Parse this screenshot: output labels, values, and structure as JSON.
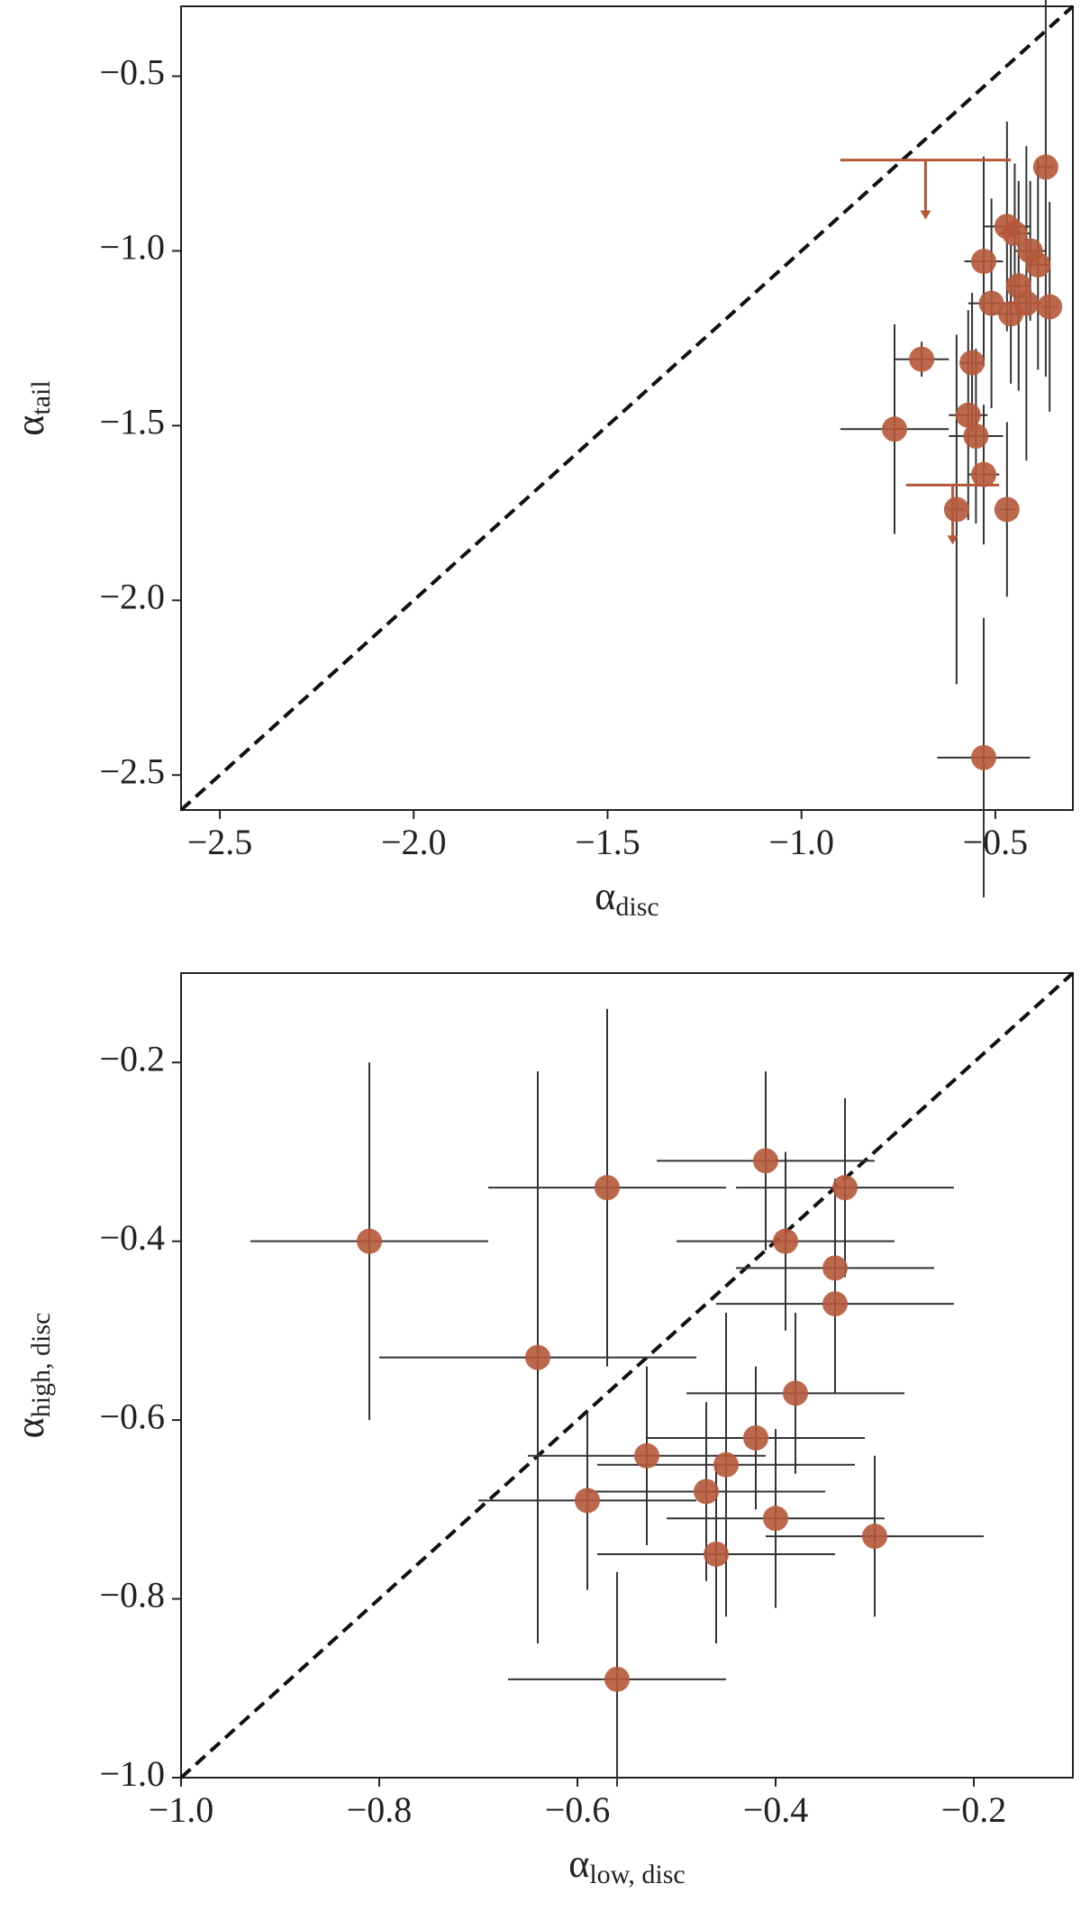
{
  "chart_data": [
    {
      "type": "scatter",
      "xlabel": "α",
      "xlabel_sub": "disc",
      "ylabel": "α",
      "ylabel_sub": "tail",
      "xlim": [
        -2.6,
        -0.3
      ],
      "ylim": [
        -2.6,
        -0.3
      ],
      "xticks": [
        {
          "value": -2.5,
          "label": "−2.5"
        },
        {
          "value": -2.0,
          "label": "−2.0"
        },
        {
          "value": -1.5,
          "label": "−1.5"
        },
        {
          "value": -1.0,
          "label": "−1.0"
        },
        {
          "value": -0.5,
          "label": "−0.5"
        }
      ],
      "yticks": [
        {
          "value": -2.5,
          "label": "−2.5"
        },
        {
          "value": -2.0,
          "label": "−2.0"
        },
        {
          "value": -1.5,
          "label": "−1.5"
        },
        {
          "value": -1.0,
          "label": "−1.0"
        },
        {
          "value": -0.5,
          "label": "−0.5"
        }
      ],
      "diagonal": true,
      "color": "#b5583a",
      "x": [
        -0.37,
        -0.47,
        -0.45,
        -0.53,
        -0.41,
        -0.39,
        -0.44,
        -0.51,
        -0.42,
        -0.36,
        -0.46,
        -0.69,
        -0.56,
        -0.57,
        -0.55,
        -0.76,
        -0.53,
        -0.47,
        -0.6,
        -0.53
      ],
      "y": [
        -0.76,
        -0.93,
        -0.95,
        -1.03,
        -1.0,
        -1.04,
        -1.1,
        -1.15,
        -1.15,
        -1.16,
        -1.18,
        -1.31,
        -1.32,
        -1.47,
        -1.53,
        -1.51,
        -1.64,
        -1.74,
        -1.74,
        -2.45
      ],
      "xerr": [
        0.02,
        0.06,
        0.04,
        0.05,
        0.04,
        0.03,
        0.03,
        0.06,
        0.04,
        0.02,
        0.05,
        0.07,
        0.03,
        0.05,
        0.07,
        0.14,
        0.04,
        0.02,
        0.02,
        0.12
      ],
      "yerr": [
        0.6,
        0.3,
        0.2,
        0.3,
        0.2,
        0.3,
        0.3,
        0.3,
        0.45,
        0.3,
        0.2,
        0.05,
        0.2,
        0.3,
        0.25,
        0.3,
        0.2,
        0.25,
        0.5,
        0.4
      ],
      "limits": {
        "color": "#b5583a",
        "x": [
          -0.68,
          -0.61
        ],
        "y": [
          -0.74,
          -1.67
        ],
        "xerr": [
          0.22,
          0.12
        ]
      }
    },
    {
      "type": "scatter",
      "xlabel": "α",
      "xlabel_sub": "low, disc",
      "ylabel": "α",
      "ylabel_sub": "high, disc",
      "xlim": [
        -1.0,
        -0.1
      ],
      "ylim": [
        -1.0,
        -0.1
      ],
      "xticks": [
        {
          "value": -1.0,
          "label": "−1.0"
        },
        {
          "value": -0.8,
          "label": "−0.8"
        },
        {
          "value": -0.6,
          "label": "−0.6"
        },
        {
          "value": -0.4,
          "label": "−0.4"
        },
        {
          "value": -0.2,
          "label": "−0.2"
        }
      ],
      "yticks": [
        {
          "value": -1.0,
          "label": "−1.0"
        },
        {
          "value": -0.8,
          "label": "−0.8"
        },
        {
          "value": -0.6,
          "label": "−0.6"
        },
        {
          "value": -0.4,
          "label": "−0.4"
        },
        {
          "value": -0.2,
          "label": "−0.2"
        }
      ],
      "diagonal": true,
      "color": "#b5583a",
      "x": [
        -0.81,
        -0.57,
        -0.41,
        -0.33,
        -0.39,
        -0.34,
        -0.34,
        -0.64,
        -0.38,
        -0.42,
        -0.53,
        -0.45,
        -0.47,
        -0.59,
        -0.4,
        -0.3,
        -0.46,
        -0.56
      ],
      "y": [
        -0.4,
        -0.34,
        -0.31,
        -0.34,
        -0.4,
        -0.43,
        -0.47,
        -0.53,
        -0.57,
        -0.62,
        -0.64,
        -0.65,
        -0.68,
        -0.69,
        -0.71,
        -0.73,
        -0.75,
        -0.89
      ],
      "xerr": [
        0.12,
        0.12,
        0.11,
        0.11,
        0.11,
        0.1,
        0.12,
        0.16,
        0.11,
        0.11,
        0.12,
        0.13,
        0.12,
        0.11,
        0.11,
        0.11,
        0.12,
        0.11
      ],
      "yerr": [
        0.2,
        0.2,
        0.1,
        0.1,
        0.1,
        0.1,
        0.1,
        0.32,
        0.09,
        0.08,
        0.1,
        0.17,
        0.1,
        0.1,
        0.1,
        0.09,
        0.1,
        0.12
      ]
    }
  ]
}
